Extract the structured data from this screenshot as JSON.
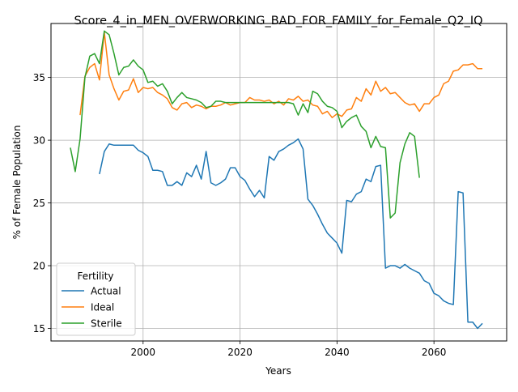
{
  "chart_data": {
    "type": "line",
    "title": "Score_4_in_MEN_OVERWORKING_BAD_FOR_FAMILY_for_Female_Q2_IQ",
    "xlabel": "Years",
    "ylabel": "% of Female Population",
    "xlim": [
      1981,
      2075
    ],
    "ylim": [
      14.0,
      39.3
    ],
    "xticks": [
      2000,
      2020,
      2040,
      2060
    ],
    "xtick_labels": [
      "2000",
      "2020",
      "2040",
      "2060"
    ],
    "yticks": [
      15,
      20,
      25,
      30,
      35
    ],
    "ytick_labels": [
      "15",
      "20",
      "25",
      "30",
      "35"
    ],
    "grid": true,
    "legend": {
      "title": "Fertility",
      "placement": "lower-left"
    },
    "series": [
      {
        "name": "Actual",
        "color": "#1f77b4",
        "x": [
          1991,
          1992,
          1993,
          1994,
          1995,
          1996,
          1997,
          1998,
          1999,
          2000,
          2001,
          2002,
          2003,
          2004,
          2005,
          2006,
          2007,
          2008,
          2009,
          2010,
          2011,
          2012,
          2013,
          2014,
          2015,
          2016,
          2017,
          2018,
          2019,
          2020,
          2021,
          2022,
          2023,
          2024,
          2025,
          2026,
          2027,
          2028,
          2029,
          2030,
          2031,
          2032,
          2033,
          2034,
          2035,
          2036,
          2037,
          2038,
          2039,
          2040,
          2041,
          2042,
          2043,
          2044,
          2045,
          2046,
          2047,
          2048,
          2049,
          2050,
          2051,
          2052,
          2053,
          2054,
          2055,
          2056,
          2057,
          2058,
          2059,
          2060,
          2061,
          2062,
          2063,
          2064,
          2065,
          2066,
          2067,
          2068,
          2069,
          2070
        ],
        "values": [
          27.3,
          29.1,
          29.7,
          29.6,
          29.6,
          29.6,
          29.6,
          29.6,
          29.2,
          29.0,
          28.7,
          27.6,
          27.6,
          27.5,
          26.4,
          26.4,
          26.7,
          26.4,
          27.4,
          27.1,
          28.0,
          26.9,
          29.1,
          26.6,
          26.4,
          26.6,
          26.9,
          27.8,
          27.8,
          27.1,
          26.8,
          26.1,
          25.5,
          26.0,
          25.4,
          28.7,
          28.4,
          29.1,
          29.3,
          29.6,
          29.8,
          30.1,
          29.3,
          25.3,
          24.8,
          24.1,
          23.3,
          22.6,
          22.2,
          21.8,
          21.0,
          25.2,
          25.1,
          25.7,
          25.9,
          26.9,
          26.7,
          27.9,
          28.0,
          19.8,
          20.0,
          20.0,
          19.8,
          20.1,
          19.8,
          19.6,
          19.4,
          18.8,
          18.6,
          17.8,
          17.6,
          17.2,
          17.0,
          16.9,
          25.9,
          25.8,
          15.5,
          15.5,
          15.0,
          15.4
        ]
      },
      {
        "name": "Ideal",
        "color": "#ff7f0e",
        "x": [
          1987,
          1988,
          1989,
          1990,
          1991,
          1992,
          1993,
          1994,
          1995,
          1996,
          1997,
          1998,
          1999,
          2000,
          2001,
          2002,
          2003,
          2004,
          2005,
          2006,
          2007,
          2008,
          2009,
          2010,
          2011,
          2012,
          2013,
          2014,
          2015,
          2016,
          2017,
          2018,
          2019,
          2020,
          2021,
          2022,
          2023,
          2024,
          2025,
          2026,
          2027,
          2028,
          2029,
          2030,
          2031,
          2032,
          2033,
          2034,
          2035,
          2036,
          2037,
          2038,
          2039,
          2040,
          2041,
          2042,
          2043,
          2044,
          2045,
          2046,
          2047,
          2048,
          2049,
          2050,
          2051,
          2052,
          2053,
          2054,
          2055,
          2056,
          2057,
          2058,
          2059,
          2060,
          2061,
          2062,
          2063,
          2064,
          2065,
          2066,
          2067,
          2068,
          2069,
          2070
        ],
        "values": [
          32.0,
          35.1,
          35.8,
          36.1,
          34.8,
          38.6,
          35.2,
          34.1,
          33.2,
          33.9,
          34.0,
          34.9,
          33.8,
          34.2,
          34.1,
          34.2,
          33.8,
          33.6,
          33.3,
          32.6,
          32.4,
          32.9,
          33.0,
          32.6,
          32.8,
          32.7,
          32.5,
          32.7,
          32.7,
          32.8,
          33.0,
          32.8,
          32.9,
          33.0,
          33.0,
          33.4,
          33.2,
          33.2,
          33.1,
          33.2,
          32.9,
          33.1,
          32.8,
          33.3,
          33.2,
          33.5,
          33.1,
          33.2,
          32.8,
          32.7,
          32.1,
          32.3,
          31.8,
          32.1,
          31.9,
          32.4,
          32.5,
          33.4,
          33.1,
          34.1,
          33.6,
          34.7,
          33.9,
          34.2,
          33.7,
          33.8,
          33.4,
          33.0,
          32.8,
          32.9,
          32.3,
          32.9,
          32.9,
          33.4,
          33.6,
          34.5,
          34.7,
          35.5,
          35.6,
          36.0,
          36.0,
          36.1,
          35.7,
          35.7
        ]
      },
      {
        "name": "Sterile",
        "color": "#2ca02c",
        "x": [
          1985,
          1986,
          1987,
          1988,
          1989,
          1990,
          1991,
          1992,
          1993,
          1994,
          1995,
          1996,
          1997,
          1998,
          1999,
          2000,
          2001,
          2002,
          2003,
          2004,
          2005,
          2006,
          2007,
          2008,
          2009,
          2010,
          2011,
          2012,
          2013,
          2014,
          2015,
          2016,
          2017,
          2018,
          2019,
          2020,
          2021,
          2022,
          2023,
          2024,
          2025,
          2026,
          2027,
          2028,
          2029,
          2030,
          2031,
          2032,
          2033,
          2034,
          2035,
          2036,
          2037,
          2038,
          2039,
          2040,
          2041,
          2042,
          2043,
          2044,
          2045,
          2046,
          2047,
          2048,
          2049,
          2050,
          2051,
          2052,
          2053,
          2054,
          2055,
          2056,
          2057
        ],
        "values": [
          29.4,
          27.5,
          30.1,
          35.0,
          36.7,
          36.9,
          36.1,
          38.7,
          38.4,
          36.9,
          35.2,
          35.8,
          35.9,
          36.4,
          35.9,
          35.6,
          34.6,
          34.7,
          34.3,
          34.5,
          33.9,
          32.9,
          33.4,
          33.8,
          33.4,
          33.3,
          33.2,
          33.0,
          32.6,
          32.7,
          33.1,
          33.1,
          33.0,
          33.0,
          33.0,
          33.0,
          33.0,
          33.0,
          33.0,
          33.0,
          33.0,
          33.0,
          33.0,
          33.0,
          33.0,
          33.0,
          32.9,
          32.0,
          32.9,
          32.2,
          33.9,
          33.7,
          33.1,
          32.7,
          32.6,
          32.3,
          31.0,
          31.5,
          31.8,
          32.0,
          31.1,
          30.7,
          29.4,
          30.3,
          29.5,
          29.4,
          23.8,
          24.2,
          28.2,
          29.7,
          30.6,
          30.3,
          27.0
        ]
      }
    ]
  }
}
